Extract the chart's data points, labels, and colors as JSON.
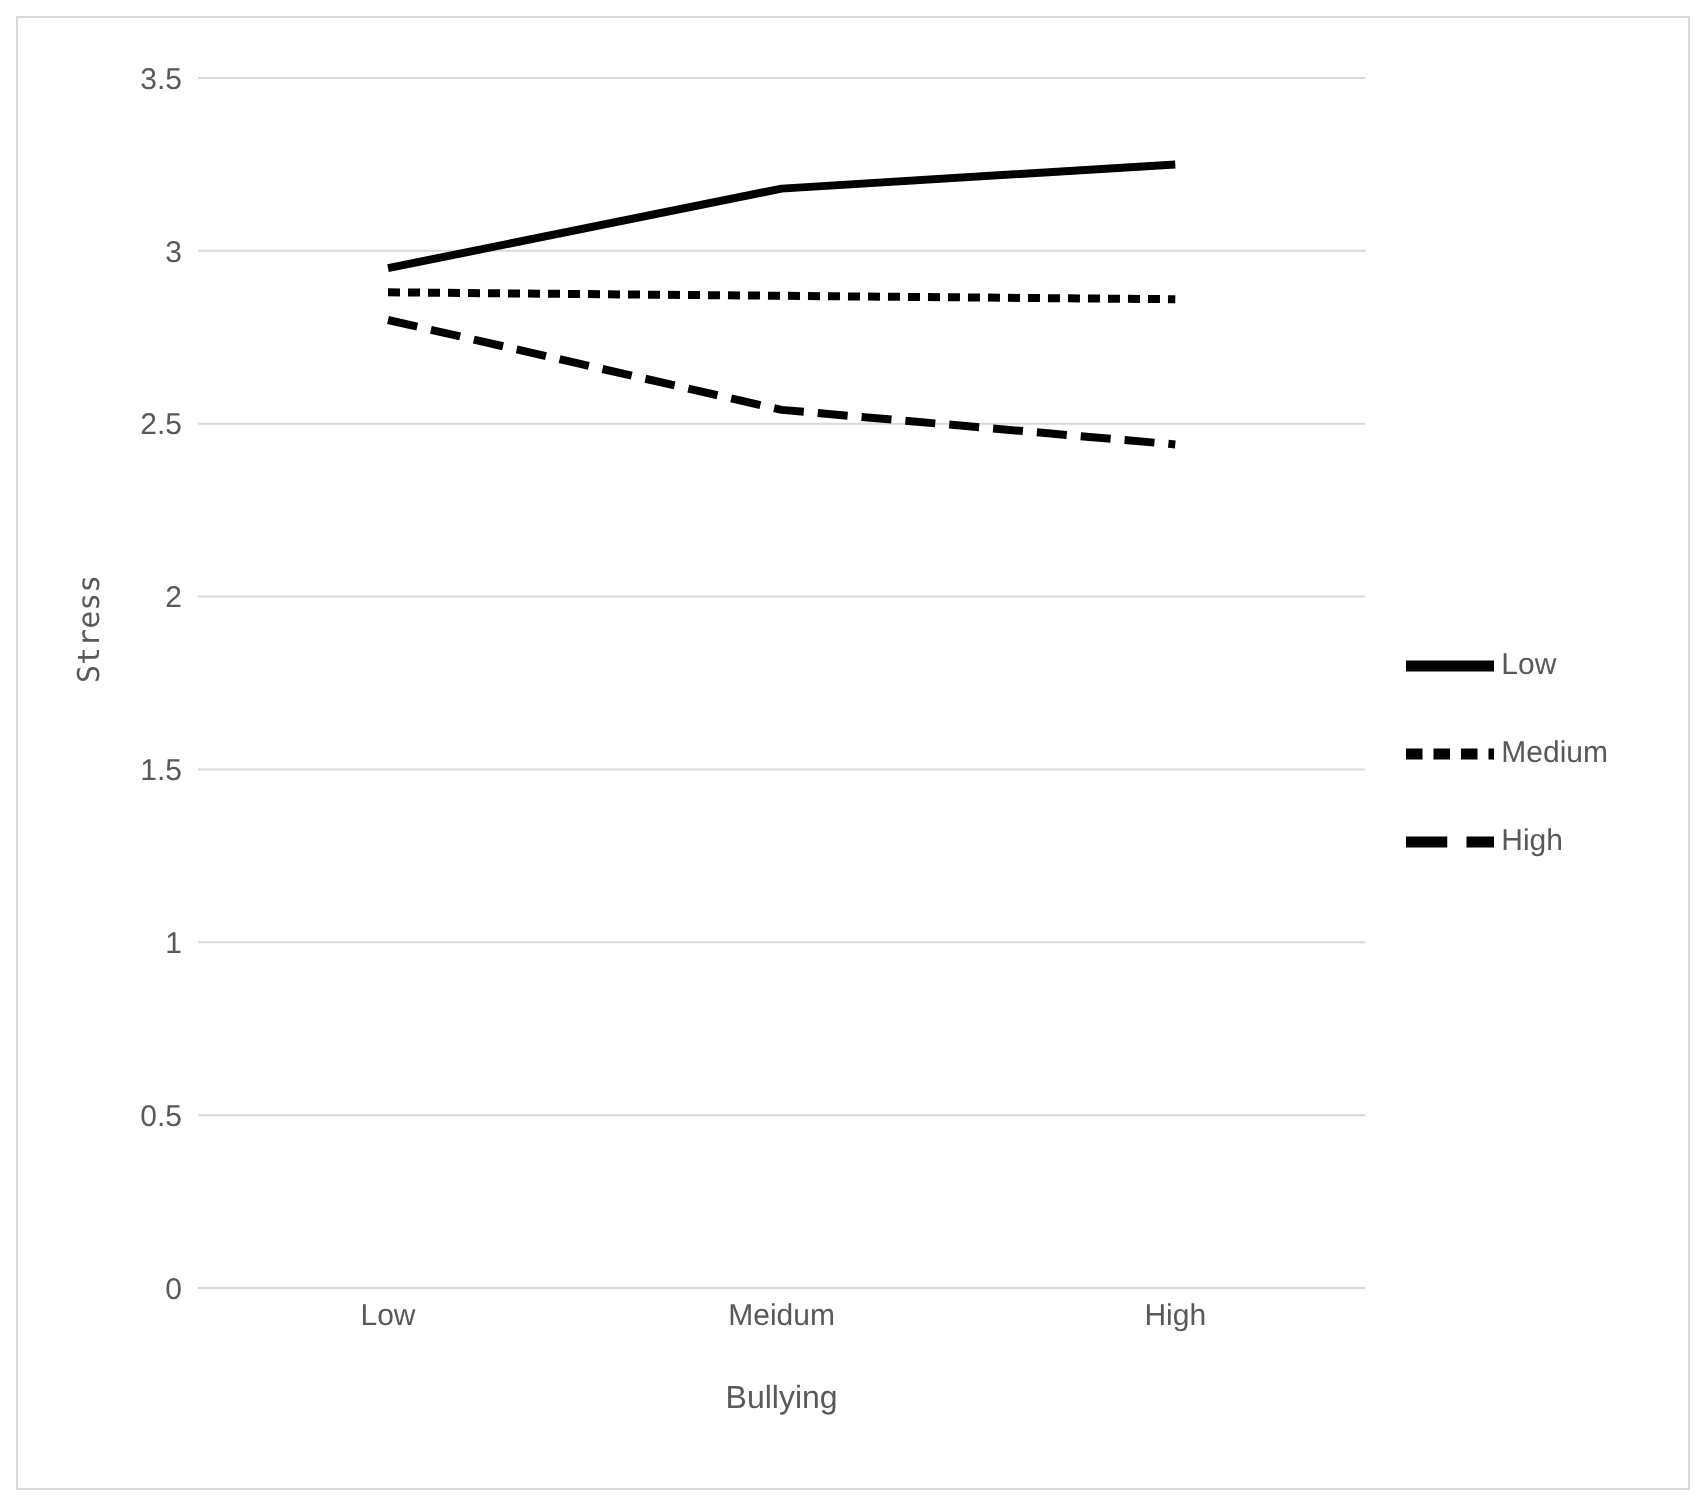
{
  "chart_data": {
    "type": "line",
    "xlabel": "Bullying",
    "ylabel": "Stress",
    "categories": [
      "Low",
      "Meidum",
      "High"
    ],
    "series": [
      {
        "name": "Low",
        "color": "#000000",
        "line_style": "solid",
        "values": [
          2.95,
          3.18,
          3.25
        ]
      },
      {
        "name": "Medium",
        "color": "#000000",
        "line_style": "dotted",
        "values": [
          2.88,
          2.87,
          2.86
        ]
      },
      {
        "name": "High",
        "color": "#000000",
        "line_style": "dashed",
        "values": [
          2.8,
          2.54,
          2.44
        ]
      }
    ],
    "ylim": [
      0,
      3.5
    ],
    "yticks": [
      0,
      0.5,
      1,
      1.5,
      2,
      2.5,
      3,
      3.5
    ],
    "grid": "y",
    "legend": "right",
    "marker": "none"
  }
}
